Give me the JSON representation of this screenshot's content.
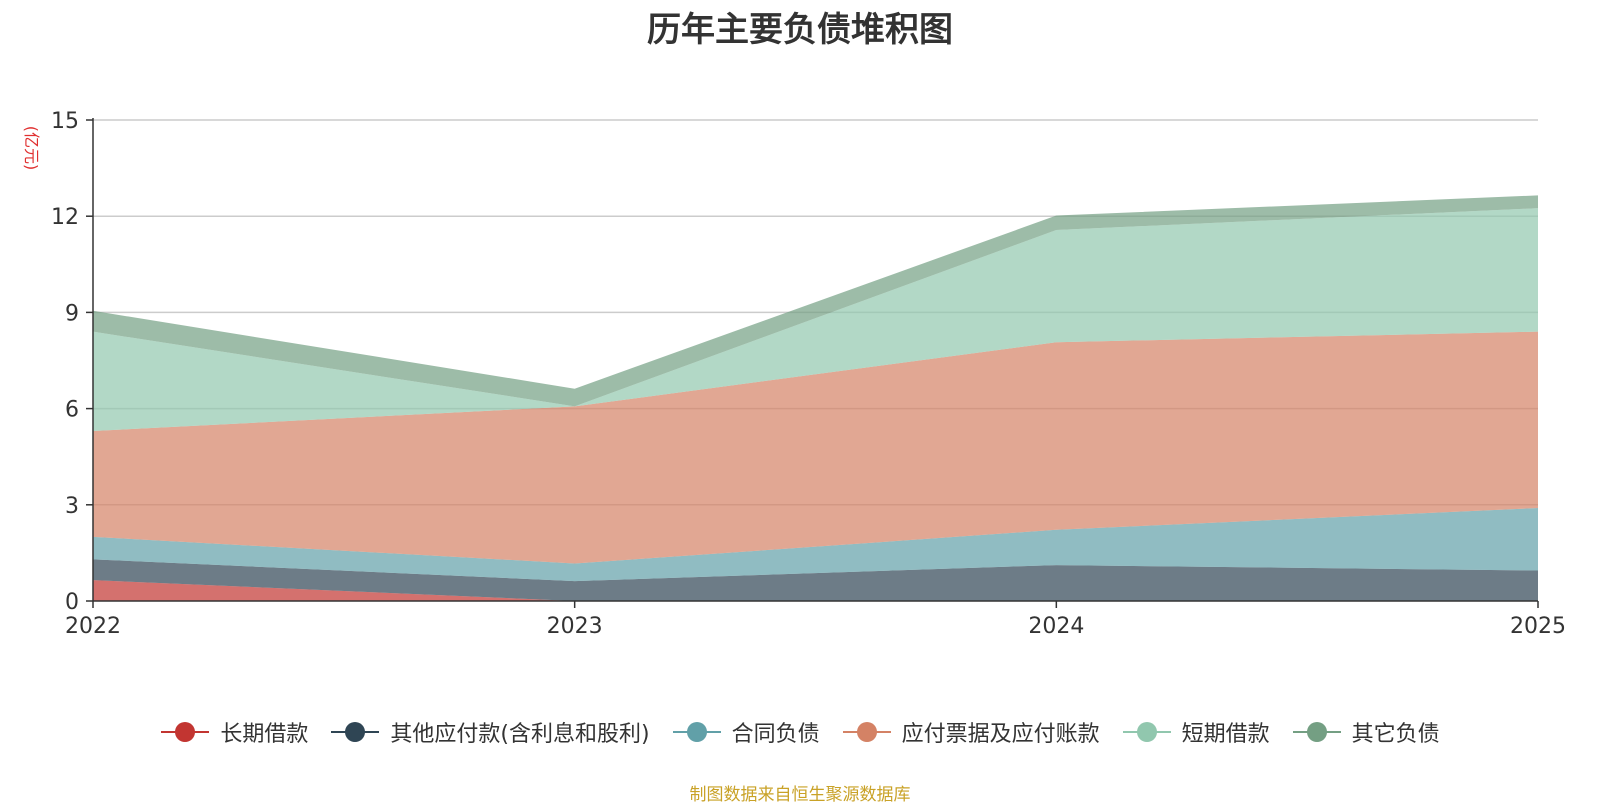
{
  "chart_data": {
    "type": "area",
    "stacked": true,
    "title": "历年主要负债堆积图",
    "ylabel": "(亿元)",
    "xlabel": "",
    "categories": [
      "2022",
      "2023",
      "2024",
      "2025"
    ],
    "ylim": [
      0,
      15
    ],
    "yticks": [
      0,
      3,
      6,
      9,
      12,
      15
    ],
    "grid": true,
    "legend_position": "bottom",
    "series": [
      {
        "name": "长期借款",
        "color": "#c23531",
        "values": [
          0.65,
          0.0,
          0.0,
          0.0
        ]
      },
      {
        "name": "其他应付款(含利息和股利)",
        "color": "#2f4554",
        "values": [
          0.65,
          0.62,
          1.12,
          0.95
        ]
      },
      {
        "name": "合同负债",
        "color": "#61a0a8",
        "values": [
          0.7,
          0.55,
          1.1,
          1.95
        ]
      },
      {
        "name": "应付票据及应付账款",
        "color": "#d48265",
        "values": [
          3.3,
          4.9,
          5.85,
          5.5
        ]
      },
      {
        "name": "短期借款",
        "color": "#91c7ae",
        "values": [
          3.1,
          0.0,
          3.5,
          3.85
        ]
      },
      {
        "name": "其它负债",
        "color": "#749f83",
        "values": [
          0.65,
          0.55,
          0.45,
          0.4
        ]
      }
    ]
  },
  "source_note": "制图数据来自恒生聚源数据库",
  "colors": {
    "title": "#333333",
    "axis": "#333333",
    "grid": "#cccccc",
    "unit_label": "#e03030",
    "source_note": "#c9a227"
  }
}
